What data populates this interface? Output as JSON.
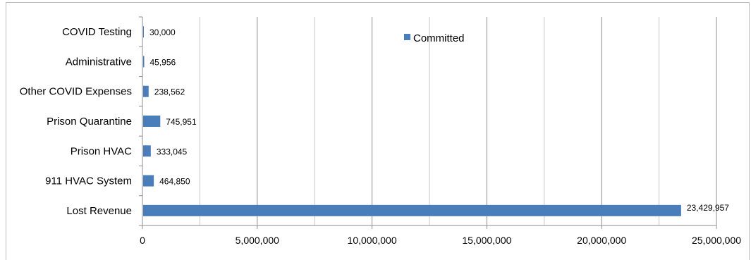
{
  "chart_data": {
    "type": "bar",
    "orientation": "horizontal",
    "categories": [
      "COVID Testing",
      "Administrative",
      "Other COVID Expenses",
      "Prison Quarantine",
      "Prison HVAC",
      "911 HVAC System",
      "Lost Revenue"
    ],
    "series": [
      {
        "name": "Committed",
        "values": [
          30000,
          45956,
          238562,
          745951,
          333045,
          464850,
          23429957
        ],
        "data_labels": [
          "30,000",
          "45,956",
          "238,562",
          "745,951",
          "333,045",
          "464,850",
          "23,429,957"
        ],
        "color": "#4a7ebb"
      }
    ],
    "xlim": [
      0,
      25000000
    ],
    "xticks": [
      0,
      5000000,
      10000000,
      15000000,
      20000000,
      25000000
    ],
    "xtick_labels": [
      "0",
      "5,000,000",
      "10,000,000",
      "15,000,000",
      "20,000,000",
      "25,000,000"
    ],
    "minor_gridlines_at": [
      2500000,
      7500000,
      12500000,
      17500000,
      22500000
    ],
    "grid": "vertical",
    "legend_position": "top-center",
    "colors": {
      "bar": "#4a7ebb",
      "major_grid": "#8c8c8c",
      "minor_grid": "#c6c6c6",
      "axis": "#8c8c8c"
    }
  }
}
